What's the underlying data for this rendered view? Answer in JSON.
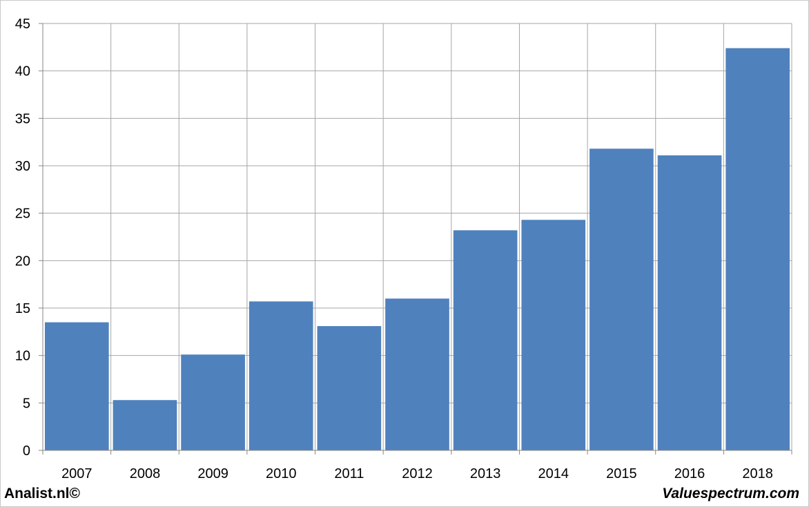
{
  "chart_data": {
    "type": "bar",
    "categories": [
      "2007",
      "2008",
      "2009",
      "2010",
      "2011",
      "2012",
      "2013",
      "2014",
      "2015",
      "2016",
      "2018"
    ],
    "values": [
      13.5,
      5.3,
      10.1,
      15.7,
      13.1,
      16.0,
      23.2,
      24.3,
      31.8,
      31.1,
      42.4
    ],
    "title": "",
    "xlabel": "",
    "ylabel": "",
    "ylim": [
      0,
      45
    ],
    "yticks": [
      "0",
      "5",
      "10",
      "15",
      "20",
      "25",
      "30",
      "35",
      "40",
      "45"
    ],
    "grid": true,
    "legend": "none",
    "bar_color": "#4F81BD"
  },
  "footer": {
    "left_text": "Analist.nl©",
    "right_text": "Valuespectrum.com"
  }
}
